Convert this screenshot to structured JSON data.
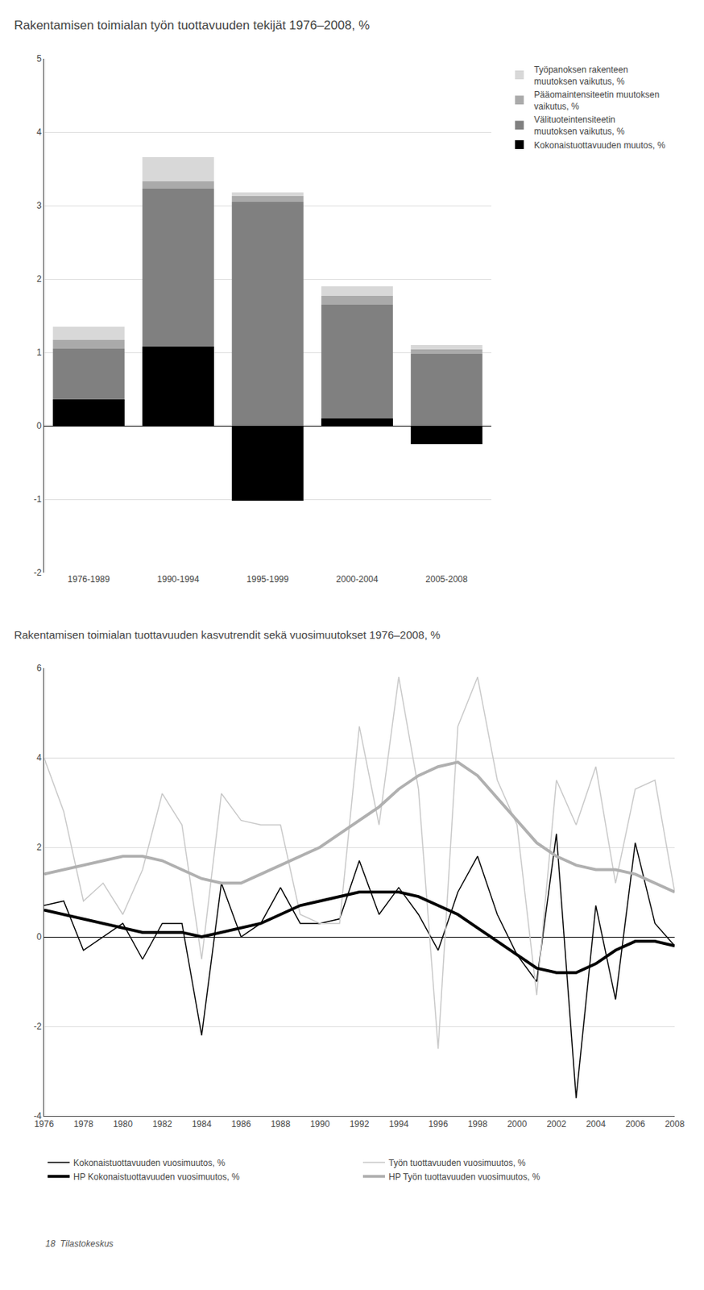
{
  "chart_data": [
    {
      "type": "bar",
      "title": "Rakentamisen toimialan työn tuottavuuden tekijät 1976–2008, %",
      "categories": [
        "1976-1989",
        "1990-1994",
        "1995-1999",
        "2000-2004",
        "2005-2008"
      ],
      "stacked": true,
      "ylim": [
        -2,
        5
      ],
      "yticks": [
        -2,
        -1,
        0,
        1,
        2,
        3,
        4,
        5
      ],
      "grid": true,
      "legend": "right",
      "series": [
        {
          "name": "Työpanoksen rakenteen\nmuutoksen vaikutus, %",
          "color": "#d8d8d8",
          "values": [
            0.18,
            0.33,
            0.05,
            0.13,
            0.06
          ]
        },
        {
          "name": "Pääomaintensiteetin muutoksen\nvaikutus, %",
          "color": "#aaaaaa",
          "values": [
            0.12,
            0.1,
            0.08,
            0.12,
            0.06
          ]
        },
        {
          "name": "Välituoteintensiteetin\nmuutoksen vaikutus, %",
          "color": "#808080",
          "values": [
            1.05,
            3.23,
            3.05,
            1.65,
            0.98
          ]
        },
        {
          "name": "Kokonaistuottavuuden muutos, %",
          "color": "#000000",
          "values": [
            0.36,
            1.08,
            -1.02,
            0.1,
            -0.25
          ],
          "stacked": false
        }
      ]
    },
    {
      "type": "line",
      "title": "Rakentamisen toimialan tuottavuuden kasvutrendit sekä vuosimuutokset 1976–2008, %",
      "x": [
        1976,
        1977,
        1978,
        1979,
        1980,
        1981,
        1982,
        1983,
        1984,
        1985,
        1986,
        1987,
        1988,
        1989,
        1990,
        1991,
        1992,
        1993,
        1994,
        1995,
        1996,
        1997,
        1998,
        1999,
        2000,
        2001,
        2002,
        2003,
        2004,
        2005,
        2006,
        2007,
        2008
      ],
      "xlim": [
        1976,
        2008
      ],
      "xticks": [
        1976,
        1978,
        1980,
        1982,
        1984,
        1986,
        1988,
        1990,
        1992,
        1994,
        1996,
        1998,
        2000,
        2002,
        2004,
        2006,
        2008
      ],
      "ylim": [
        -4,
        6
      ],
      "yticks": [
        -4,
        -2,
        0,
        2,
        4,
        6
      ],
      "grid": true,
      "legend": "bottom",
      "series": [
        {
          "name": "Kokonaistuottavuuden vuosimuutos, %",
          "color": "#000000",
          "line_style": "thin",
          "values": [
            0.7,
            0.8,
            -0.3,
            0.0,
            0.3,
            -0.5,
            0.3,
            0.3,
            -2.2,
            1.2,
            0.0,
            0.3,
            1.1,
            0.3,
            0.3,
            0.4,
            1.7,
            0.5,
            1.1,
            0.5,
            -0.3,
            1.0,
            1.8,
            0.5,
            -0.4,
            -1.0,
            2.3,
            -3.6,
            0.7,
            -1.4,
            2.1,
            0.3,
            -0.2
          ]
        },
        {
          "name": "Työn tuottavuuden vuosimuutos, %",
          "color": "#c8c8c8",
          "line_style": "thin",
          "values": [
            4.0,
            2.8,
            0.8,
            1.2,
            0.5,
            1.5,
            3.2,
            2.5,
            -0.5,
            3.2,
            2.6,
            2.5,
            2.5,
            0.5,
            0.3,
            0.3,
            4.7,
            2.5,
            5.8,
            3.3,
            -2.5,
            4.7,
            5.8,
            3.5,
            2.5,
            -1.3,
            3.5,
            2.5,
            3.8,
            1.2,
            3.3,
            3.5,
            1.0
          ]
        },
        {
          "name": "HP Kokonaistuottavuuden vuosimuutos, %",
          "color": "#000000",
          "line_style": "thick",
          "values": [
            0.6,
            0.5,
            0.4,
            0.3,
            0.2,
            0.1,
            0.1,
            0.1,
            0.0,
            0.1,
            0.2,
            0.3,
            0.5,
            0.7,
            0.8,
            0.9,
            1.0,
            1.0,
            1.0,
            0.9,
            0.7,
            0.5,
            0.2,
            -0.1,
            -0.4,
            -0.7,
            -0.8,
            -0.8,
            -0.6,
            -0.3,
            -0.1,
            -0.1,
            -0.2
          ]
        },
        {
          "name": "HP Työn tuottavuuden vuosimuutos, %",
          "color": "#b0b0b0",
          "line_style": "thick",
          "values": [
            1.4,
            1.5,
            1.6,
            1.7,
            1.8,
            1.8,
            1.7,
            1.5,
            1.3,
            1.2,
            1.2,
            1.4,
            1.6,
            1.8,
            2.0,
            2.3,
            2.6,
            2.9,
            3.3,
            3.6,
            3.8,
            3.9,
            3.6,
            3.1,
            2.6,
            2.1,
            1.8,
            1.6,
            1.5,
            1.5,
            1.4,
            1.2,
            1.0
          ]
        }
      ],
      "annotations": [
        "18  Tilastokeskus"
      ]
    }
  ]
}
